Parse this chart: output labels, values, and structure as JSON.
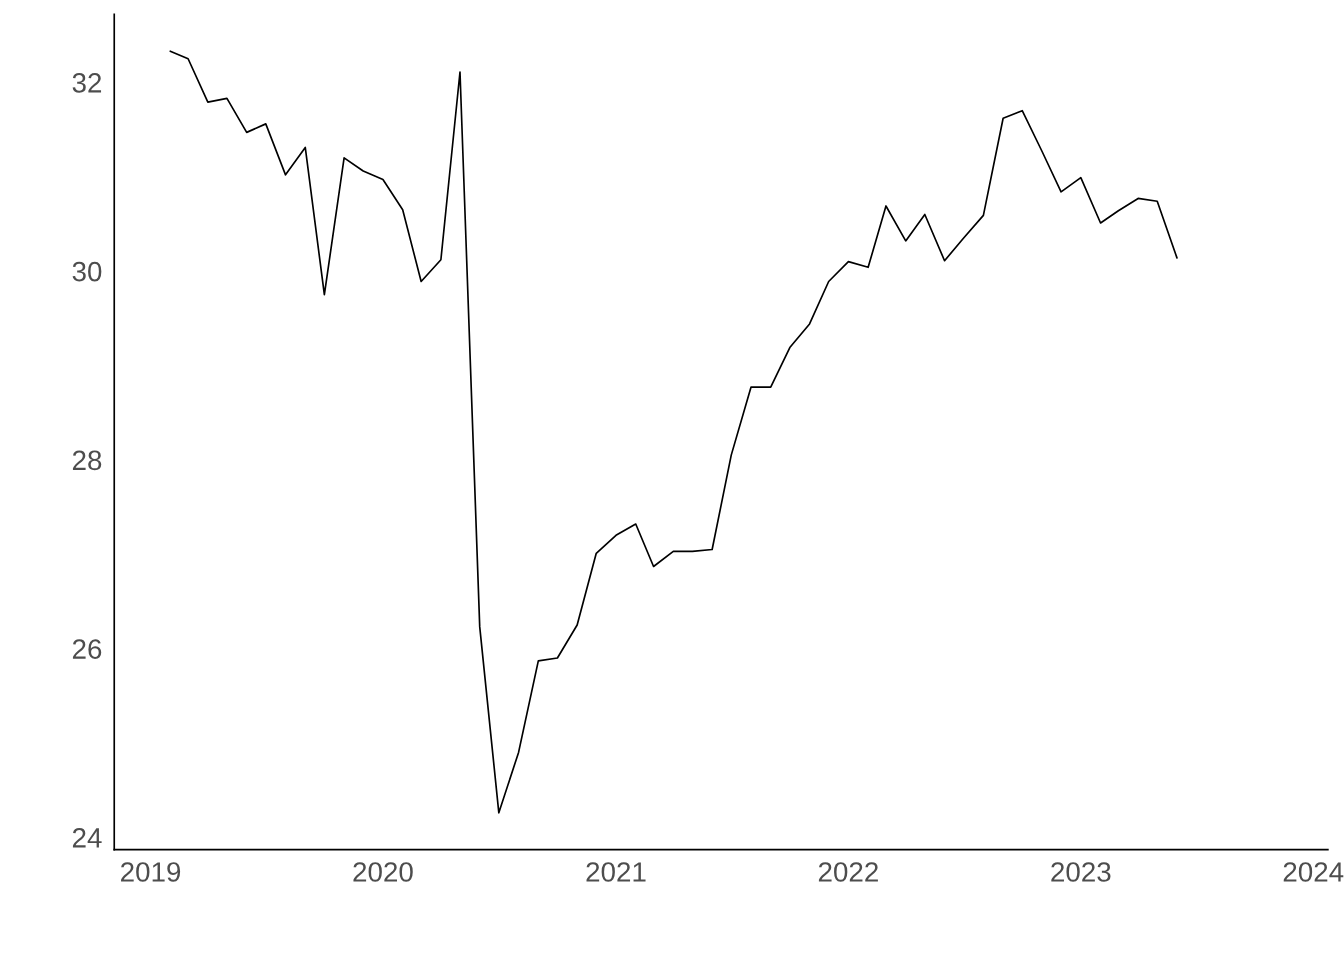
{
  "chart_data": {
    "type": "line",
    "x": [
      "2019-02",
      "2019-03",
      "2019-04",
      "2019-05",
      "2019-06",
      "2019-07",
      "2019-08",
      "2019-09",
      "2019-10",
      "2019-11",
      "2019-12",
      "2020-01",
      "2020-02",
      "2020-03",
      "2020-04",
      "2020-05",
      "2020-06",
      "2020-07",
      "2020-08",
      "2020-09",
      "2020-10",
      "2020-11",
      "2020-12",
      "2021-01",
      "2021-02",
      "2021-03",
      "2021-04",
      "2021-05",
      "2021-06",
      "2021-07",
      "2021-08",
      "2021-09",
      "2021-10",
      "2021-11",
      "2021-12",
      "2022-01",
      "2022-02",
      "2022-03",
      "2022-04",
      "2022-05",
      "2022-06",
      "2022-07",
      "2022-08",
      "2022-09",
      "2022-10",
      "2022-11",
      "2022-12",
      "2023-01",
      "2023-02",
      "2023-03",
      "2023-04",
      "2023-05",
      "2023-06"
    ],
    "series": [
      {
        "color": "#000000",
        "values": [
          32.33,
          32.25,
          31.79,
          31.83,
          31.47,
          31.56,
          31.02,
          31.31,
          29.75,
          31.2,
          31.06,
          30.97,
          30.65,
          29.89,
          30.12,
          32.11,
          26.23,
          24.26,
          24.9,
          25.87,
          25.9,
          26.25,
          27.01,
          27.2,
          27.32,
          26.87,
          27.03,
          27.03,
          27.05,
          28.05,
          28.77,
          28.77,
          29.19,
          29.44,
          29.89,
          30.1,
          30.04,
          30.69,
          30.32,
          30.6,
          30.11,
          30.35,
          30.59,
          31.62,
          31.7,
          31.27,
          30.84,
          30.99,
          30.51,
          30.64,
          30.77,
          30.74,
          30.14
        ]
      }
    ],
    "xlim": [
      "2018-11-05",
      "2024-01-24"
    ],
    "xticks": [
      "2019",
      "2020",
      "2021",
      "2022",
      "2023",
      "2024"
    ],
    "ylim": [
      23.87,
      32.72
    ],
    "yticks": [
      24,
      26,
      28,
      30,
      32
    ],
    "grid": false,
    "marker": "none",
    "line_style": "solid"
  }
}
